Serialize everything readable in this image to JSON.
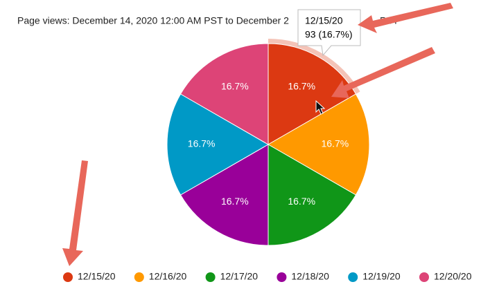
{
  "chart_data": {
    "type": "pie",
    "title": "Page views: December 14, 2020 12:00 AM PST to December 2",
    "title_tail": "PST",
    "categories": [
      "12/15/20",
      "12/16/20",
      "12/17/20",
      "12/18/20",
      "12/19/20",
      "12/20/20"
    ],
    "values": [
      16.7,
      16.7,
      16.7,
      16.7,
      16.7,
      16.7
    ],
    "value_labels": [
      "16.7%",
      "16.7%",
      "16.7%",
      "16.7%",
      "16.7%",
      "16.7%"
    ],
    "colors": [
      "#dc3912",
      "#ff9900",
      "#109618",
      "#990099",
      "#0099c6",
      "#dd4477"
    ],
    "legend": "bottom",
    "tooltip": {
      "label": "12/15/20",
      "text": "93 (16.7%)"
    }
  }
}
